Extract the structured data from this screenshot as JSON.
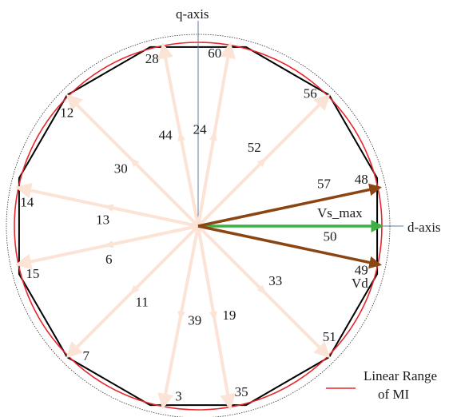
{
  "diagram": {
    "axes": {
      "q_label": "q-axis",
      "d_label": "d-axis"
    },
    "light_vectors": [
      {
        "id": "60",
        "angle": 80,
        "mid_label": "24"
      },
      {
        "id": "28",
        "angle": 101,
        "mid_label": "44"
      },
      {
        "id": "56",
        "angle": 45,
        "mid_label": "52"
      },
      {
        "id": "12",
        "angle": 135,
        "mid_label": "30"
      },
      {
        "id": "14",
        "angle": 168,
        "mid_label": "13"
      },
      {
        "id": "15",
        "angle": 192,
        "mid_label": "6"
      },
      {
        "id": "7",
        "angle": 225,
        "mid_label": "11"
      },
      {
        "id": "3",
        "angle": 259,
        "mid_label": "39"
      },
      {
        "id": "35",
        "angle": 280,
        "mid_label": "19"
      },
      {
        "id": "51",
        "angle": 315,
        "mid_label": "33"
      }
    ],
    "dark_vectors": [
      {
        "id": "48",
        "angle": 12,
        "mid_label": "57"
      },
      {
        "id": "49",
        "angle": -12,
        "mid_label": "50"
      }
    ],
    "green_vector": {
      "label": "Vs_max",
      "angle": 0
    },
    "vd_label": "Vd",
    "legend": {
      "line1": "Linear Range",
      "line2": "of MI"
    },
    "colors": {
      "light_vector": "#fbe3d6",
      "dark_vector": "#8b4513",
      "green_vector": "#3cb043",
      "polygon": "#000000",
      "linear_circle": "#e8262c",
      "outer_circle": "#333333",
      "q_axis": "#5b7fa6",
      "d_axis": "#5b7fa6"
    }
  }
}
